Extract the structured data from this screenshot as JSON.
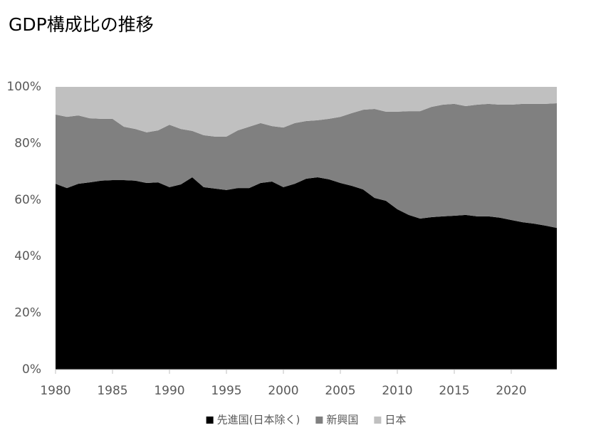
{
  "chart_data": {
    "type": "stacked_area",
    "title": "GDP構成比の推移",
    "x": [
      1980,
      1981,
      1982,
      1983,
      1984,
      1985,
      1986,
      1987,
      1988,
      1989,
      1990,
      1991,
      1992,
      1993,
      1994,
      1995,
      1996,
      1997,
      1998,
      1999,
      2000,
      2001,
      2002,
      2003,
      2004,
      2005,
      2006,
      2007,
      2008,
      2009,
      2010,
      2011,
      2012,
      2013,
      2014,
      2015,
      2016,
      2017,
      2018,
      2019,
      2020,
      2021,
      2022,
      2023,
      2024
    ],
    "series": [
      {
        "name": "先進国(日本除く)",
        "color": "#000000",
        "values": [
          65.7,
          64.2,
          65.7,
          66.2,
          66.8,
          67.0,
          67.0,
          66.8,
          66.0,
          66.2,
          64.5,
          65.5,
          68.0,
          64.5,
          64.0,
          63.5,
          64.2,
          64.2,
          66.0,
          66.5,
          64.5,
          65.7,
          67.5,
          68.0,
          67.3,
          66.0,
          65.0,
          63.7,
          60.7,
          59.7,
          56.7,
          54.7,
          53.4,
          53.9,
          54.2,
          54.4,
          54.7,
          54.2,
          54.2,
          53.7,
          52.9,
          52.1,
          51.6,
          50.9,
          50.1
        ]
      },
      {
        "name": "新興国",
        "color": "#808080",
        "values": [
          24.5,
          25.2,
          24.2,
          22.7,
          21.9,
          21.7,
          18.9,
          18.3,
          17.9,
          18.4,
          22.1,
          19.6,
          16.4,
          18.4,
          18.4,
          18.9,
          20.4,
          21.7,
          21.2,
          19.6,
          21.1,
          21.5,
          20.4,
          20.2,
          21.4,
          23.4,
          25.7,
          28.2,
          31.5,
          31.5,
          34.5,
          36.7,
          38.0,
          39.0,
          39.5,
          39.6,
          38.5,
          39.5,
          39.8,
          40.0,
          40.8,
          41.9,
          42.4,
          43.1,
          44.1
        ]
      },
      {
        "name": "日本",
        "color": "#c0c0c0",
        "values": [
          9.8,
          10.6,
          10.1,
          11.1,
          11.3,
          11.3,
          14.1,
          14.9,
          16.1,
          15.4,
          13.4,
          14.9,
          15.6,
          17.1,
          17.6,
          17.6,
          15.4,
          14.1,
          12.8,
          13.9,
          14.4,
          12.8,
          12.1,
          11.8,
          11.3,
          10.6,
          9.3,
          8.1,
          7.8,
          8.8,
          8.8,
          8.6,
          8.6,
          7.1,
          6.3,
          6.0,
          6.8,
          6.3,
          6.0,
          6.3,
          6.3,
          6.0,
          6.0,
          6.0,
          5.8
        ]
      }
    ],
    "xlim": [
      1980,
      2024
    ],
    "xticks": [
      1980,
      1985,
      1990,
      1995,
      2000,
      2005,
      2010,
      2015,
      2020
    ],
    "ylim": [
      0,
      100
    ],
    "yticks": [
      {
        "value": 0,
        "label": "0%"
      },
      {
        "value": 20,
        "label": "20%"
      },
      {
        "value": 40,
        "label": "40%"
      },
      {
        "value": 60,
        "label": "60%"
      },
      {
        "value": 80,
        "label": "80%"
      },
      {
        "value": 100,
        "label": "100%"
      }
    ],
    "legend": "bottom"
  }
}
